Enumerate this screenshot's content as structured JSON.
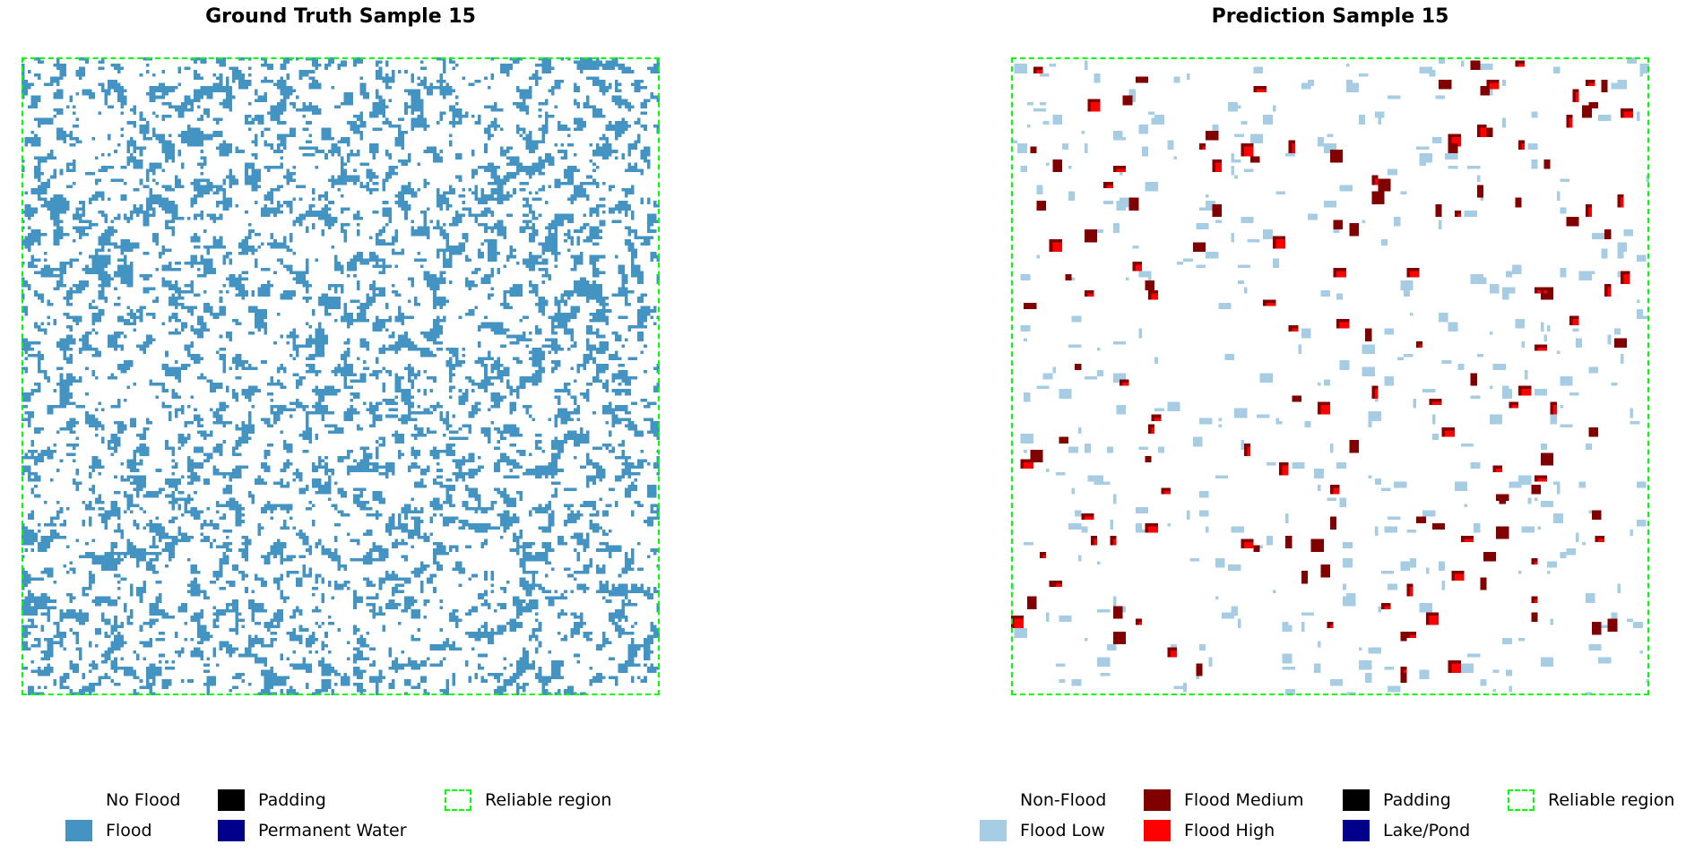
{
  "panels": {
    "left": {
      "title": "Ground Truth Sample 15",
      "legend": [
        {
          "label": "No Flood",
          "color": "#ffffff"
        },
        {
          "label": "Flood",
          "color": "#4393c3"
        },
        {
          "label": "Padding",
          "color": "#000000"
        },
        {
          "label": "Permanent Water",
          "color": "#00008b"
        },
        {
          "label": "Reliable region",
          "color": "#00ff00",
          "style": "dashed"
        }
      ]
    },
    "right": {
      "title": "Prediction Sample 15",
      "legend": [
        {
          "label": "Non-Flood",
          "color": "#ffffff"
        },
        {
          "label": "Flood Low",
          "color": "#a6cde3"
        },
        {
          "label": "Flood Medium",
          "color": "#800000"
        },
        {
          "label": "Flood High",
          "color": "#ff0000"
        },
        {
          "label": "Padding",
          "color": "#000000"
        },
        {
          "label": "Lake/Pond",
          "color": "#00008b"
        },
        {
          "label": "Reliable region",
          "color": "#00ff00",
          "style": "dashed"
        }
      ]
    }
  }
}
